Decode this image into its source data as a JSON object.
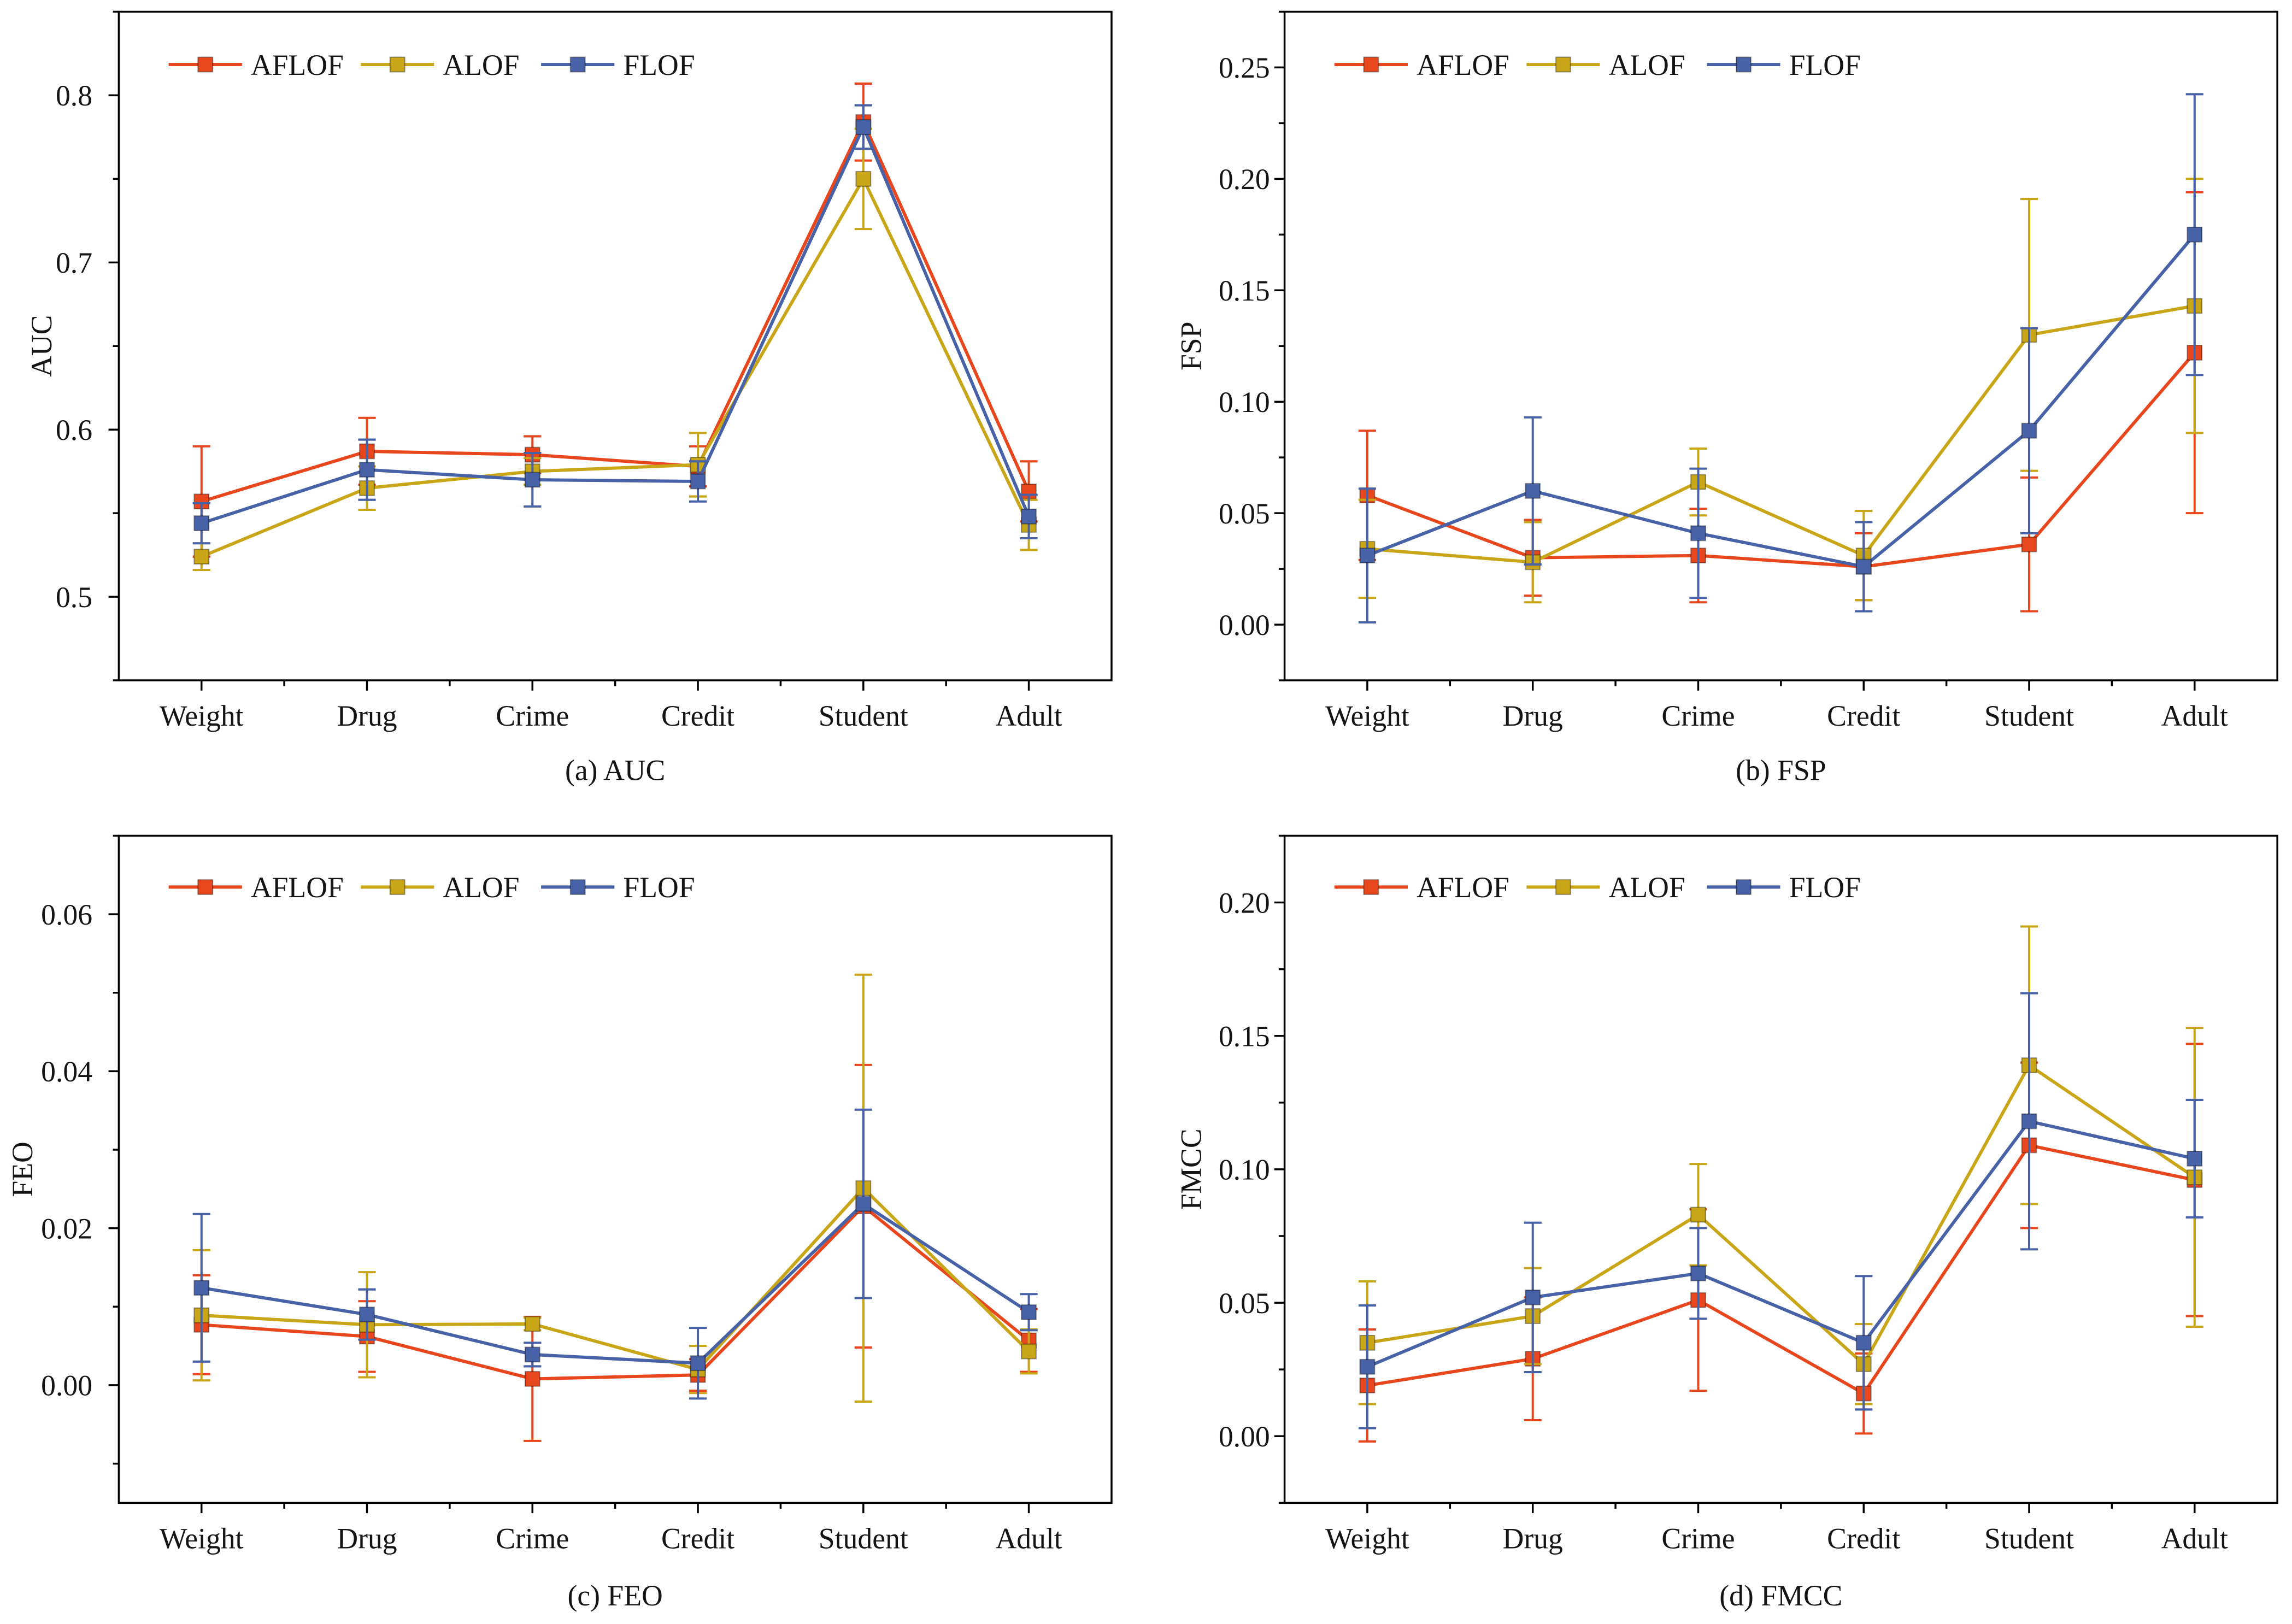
{
  "chart_data": [
    {
      "type": "line",
      "title": "(a) AUC",
      "xlabel": "",
      "ylabel": "AUC",
      "categories": [
        "Weight",
        "Drug",
        "Crime",
        "Credit",
        "Student",
        "Adult"
      ],
      "ylim": [
        0.45,
        0.85
      ],
      "yticks": [
        0.5,
        0.6,
        0.7,
        0.8
      ],
      "ytick_labels": [
        "0.5",
        "0.6",
        "0.7",
        "0.8"
      ],
      "legend": "top-left",
      "series": [
        {
          "name": "AFLOF",
          "color": "#E8471E",
          "values": [
            0.557,
            0.587,
            0.585,
            0.578,
            0.784,
            0.563
          ],
          "errors": [
            0.033,
            0.02,
            0.011,
            0.012,
            0.023,
            0.018
          ]
        },
        {
          "name": "ALOF",
          "color": "#C9A617",
          "values": [
            0.524,
            0.565,
            0.575,
            0.579,
            0.75,
            0.543
          ],
          "errors": [
            0.008,
            0.013,
            0.008,
            0.019,
            0.03,
            0.015
          ]
        },
        {
          "name": "FLOF",
          "color": "#4862A8",
          "values": [
            0.544,
            0.576,
            0.57,
            0.569,
            0.781,
            0.548
          ],
          "errors": [
            0.012,
            0.018,
            0.016,
            0.012,
            0.013,
            0.013
          ]
        }
      ]
    },
    {
      "type": "line",
      "title": "(b) FSP",
      "xlabel": "",
      "ylabel": "FSP",
      "categories": [
        "Weight",
        "Drug",
        "Crime",
        "Credit",
        "Student",
        "Adult"
      ],
      "ylim": [
        -0.025,
        0.275
      ],
      "yticks": [
        0.0,
        0.05,
        0.1,
        0.15,
        0.2,
        0.25
      ],
      "ytick_labels": [
        "0.00",
        "0.05",
        "0.10",
        "0.15",
        "0.20",
        "0.25"
      ],
      "legend": "top-left",
      "series": [
        {
          "name": "AFLOF",
          "color": "#E8471E",
          "values": [
            0.058,
            0.03,
            0.031,
            0.026,
            0.036,
            0.122
          ],
          "errors": [
            0.029,
            0.017,
            0.021,
            0.015,
            0.03,
            0.072
          ]
        },
        {
          "name": "ALOF",
          "color": "#C9A617",
          "values": [
            0.034,
            0.028,
            0.064,
            0.031,
            0.13,
            0.143
          ],
          "errors": [
            0.022,
            0.018,
            0.015,
            0.02,
            0.061,
            0.057
          ]
        },
        {
          "name": "FLOF",
          "color": "#4862A8",
          "values": [
            0.031,
            0.06,
            0.041,
            0.026,
            0.087,
            0.175
          ],
          "errors": [
            0.03,
            0.033,
            0.029,
            0.02,
            0.046,
            0.063
          ]
        }
      ]
    },
    {
      "type": "line",
      "title": "(c) FEO",
      "xlabel": "",
      "ylabel": "FEO",
      "categories": [
        "Weight",
        "Drug",
        "Crime",
        "Credit",
        "Student",
        "Adult"
      ],
      "ylim": [
        -0.015,
        0.07
      ],
      "yticks": [
        0.0,
        0.02,
        0.04,
        0.06
      ],
      "ytick_labels": [
        "0.00",
        "0.02",
        "0.04",
        "0.06"
      ],
      "legend": "top-left",
      "series": [
        {
          "name": "AFLOF",
          "color": "#E8471E",
          "values": [
            0.0077,
            0.0062,
            0.0008,
            0.0013,
            0.0228,
            0.0057
          ],
          "errors": [
            0.0063,
            0.0045,
            0.0079,
            0.002,
            0.018,
            0.004
          ]
        },
        {
          "name": "ALOF",
          "color": "#C9A617",
          "values": [
            0.0089,
            0.0077,
            0.0078,
            0.002,
            0.0251,
            0.0043
          ],
          "errors": [
            0.0083,
            0.0067,
            0.0008,
            0.003,
            0.0272,
            0.0028
          ]
        },
        {
          "name": "FLOF",
          "color": "#4862A8",
          "values": [
            0.0124,
            0.009,
            0.0039,
            0.0028,
            0.0231,
            0.0093
          ],
          "errors": [
            0.0094,
            0.0032,
            0.0015,
            0.0045,
            0.012,
            0.0023
          ]
        }
      ]
    },
    {
      "type": "line",
      "title": "(d) FMCC",
      "xlabel": "",
      "ylabel": "FMCC",
      "categories": [
        "Weight",
        "Drug",
        "Crime",
        "Credit",
        "Student",
        "Adult"
      ],
      "ylim": [
        -0.025,
        0.225
      ],
      "yticks": [
        0.0,
        0.05,
        0.1,
        0.15,
        0.2
      ],
      "ytick_labels": [
        "0.00",
        "0.05",
        "0.10",
        "0.15",
        "0.20"
      ],
      "legend": "top-left",
      "series": [
        {
          "name": "AFLOF",
          "color": "#E8471E",
          "values": [
            0.019,
            0.029,
            0.051,
            0.016,
            0.109,
            0.096
          ],
          "errors": [
            0.021,
            0.023,
            0.034,
            0.015,
            0.031,
            0.051
          ]
        },
        {
          "name": "ALOF",
          "color": "#C9A617",
          "values": [
            0.035,
            0.045,
            0.083,
            0.027,
            0.139,
            0.097
          ],
          "errors": [
            0.023,
            0.018,
            0.019,
            0.015,
            0.052,
            0.056
          ]
        },
        {
          "name": "FLOF",
          "color": "#4862A8",
          "values": [
            0.026,
            0.052,
            0.061,
            0.035,
            0.118,
            0.104
          ],
          "errors": [
            0.023,
            0.028,
            0.017,
            0.025,
            0.048,
            0.022
          ]
        }
      ]
    }
  ]
}
